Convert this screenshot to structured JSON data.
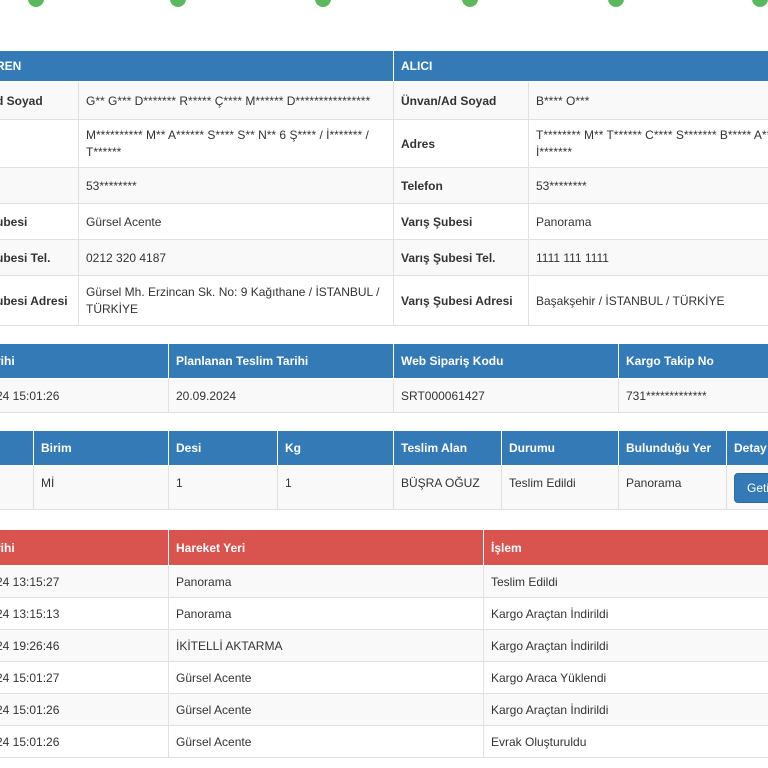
{
  "parties": {
    "sender_header": "REN",
    "receiver_header": "ALICI",
    "rows": [
      {
        "l1": "d Soyad",
        "v1": "G** G*** D******* R***** Ç**** M****** D****************",
        "l2": "Ünvan/Ad Soyad",
        "v2": "B**** O***"
      },
      {
        "l1": "",
        "v1": "M********** M** A****** S**** S** N** 6 Ş**** / İ******* / T******",
        "l2": "Adres",
        "v2": "T******** M** T****** C**** S******* B***** A** İ*******"
      },
      {
        "l1": "",
        "v1": "53********",
        "l2": "Telefon",
        "v2": "53********"
      },
      {
        "l1": "ubesi",
        "v1": "Gürsel Acente",
        "l2": "Varış Şubesi",
        "v2": "Panorama"
      },
      {
        "l1": "ubesi Tel.",
        "v1": "0212 320 4187",
        "l2": "Varış Şubesi Tel.",
        "v2": "1111 111 1111"
      },
      {
        "l1": "ubesi Adresi",
        "v1": "Gürsel Mh. Erzincan Sk. No: 9 Kağıthane / İSTANBUL / TÜRKİYE",
        "l2": "Varış Şubesi Adresi",
        "v2": "Başakşehir / İSTANBUL / TÜRKİYE"
      }
    ]
  },
  "shipment": {
    "headers": [
      "rihi",
      "Planlanan Teslim Tarihi",
      "Web Sipariş Kodu",
      "Kargo Takip No"
    ],
    "row": [
      "24 15:01:26",
      "20.09.2024",
      "SRT000061427",
      "731*************"
    ]
  },
  "package": {
    "headers": [
      "",
      "Birim",
      "Desi",
      "Kg",
      "Teslim Alan",
      "Durumu",
      "Bulunduğu Yer",
      "Detay"
    ],
    "row": [
      "",
      "Mİ",
      "1",
      "1",
      "BÜŞRA OĞUZ",
      "Teslim Edildi",
      "Panorama"
    ],
    "button_label": "Geti"
  },
  "movements": {
    "headers": [
      "rihi",
      "Hareket Yeri",
      "İşlem"
    ],
    "rows": [
      {
        "date": "24 13:15:27",
        "place": "Panorama",
        "action": "Teslim Edildi"
      },
      {
        "date": "24 13:15:13",
        "place": "Panorama",
        "action": "Kargo Araçtan İndirildi"
      },
      {
        "date": "24 19:26:46",
        "place": "İKİTELLİ AKTARMA",
        "action": "Kargo Araçtan İndirildi"
      },
      {
        "date": "24 15:01:27",
        "place": "Gürsel Acente",
        "action": "Kargo Araca Yüklendi"
      },
      {
        "date": "24 15:01:26",
        "place": "Gürsel Acente",
        "action": "Kargo Araçtan İndirildi"
      },
      {
        "date": "24 15:01:26",
        "place": "Gürsel Acente",
        "action": "Evrak Oluşturuldu"
      }
    ]
  },
  "colors": {
    "header_blue": "#337ab7",
    "header_red": "#d9534f",
    "step_green": "#5cb85c"
  }
}
